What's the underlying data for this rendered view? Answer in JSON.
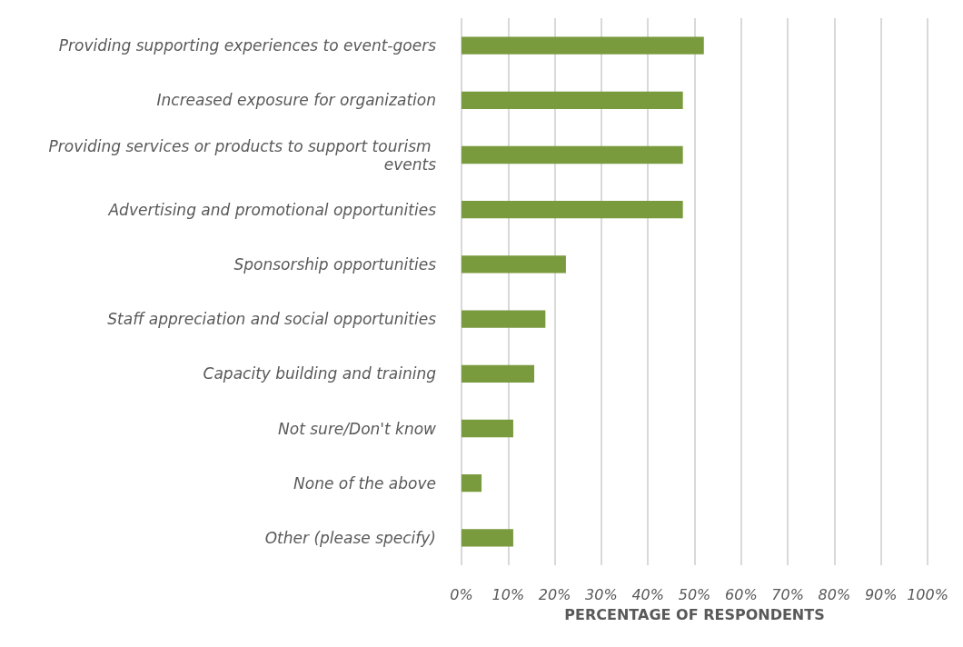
{
  "chart_data": {
    "type": "bar",
    "orientation": "horizontal",
    "xlabel": "PERCENTAGE OF RESPONDENTS",
    "categories": [
      "Providing supporting experiences to event-goers",
      "Increased exposure for organization",
      "Providing services or products to support tourism events",
      "Advertising and promotional opportunities",
      "Sponsorship opportunities",
      "Staff appreciation and social opportunities",
      "Capacity building and training",
      "Not sure/Don't know",
      "None of the above",
      "Other (please specify)"
    ],
    "values": [
      52,
      47.5,
      47.5,
      47.5,
      22.4,
      18,
      15.6,
      11.1,
      4.3,
      11.1
    ],
    "color": "#7a9a3e",
    "xlim": [
      0,
      100
    ],
    "xticks": [
      {
        "value": 0,
        "label": "0%"
      },
      {
        "value": 10,
        "label": "10%"
      },
      {
        "value": 20,
        "label": "20%"
      },
      {
        "value": 30,
        "label": "30%"
      },
      {
        "value": 40,
        "label": "40%"
      },
      {
        "value": 50,
        "label": "50%"
      },
      {
        "value": 60,
        "label": "60%"
      },
      {
        "value": 70,
        "label": "70%"
      },
      {
        "value": 80,
        "label": "80%"
      },
      {
        "value": 90,
        "label": "90%"
      },
      {
        "value": 100,
        "label": "100%"
      }
    ],
    "grid": "x"
  }
}
